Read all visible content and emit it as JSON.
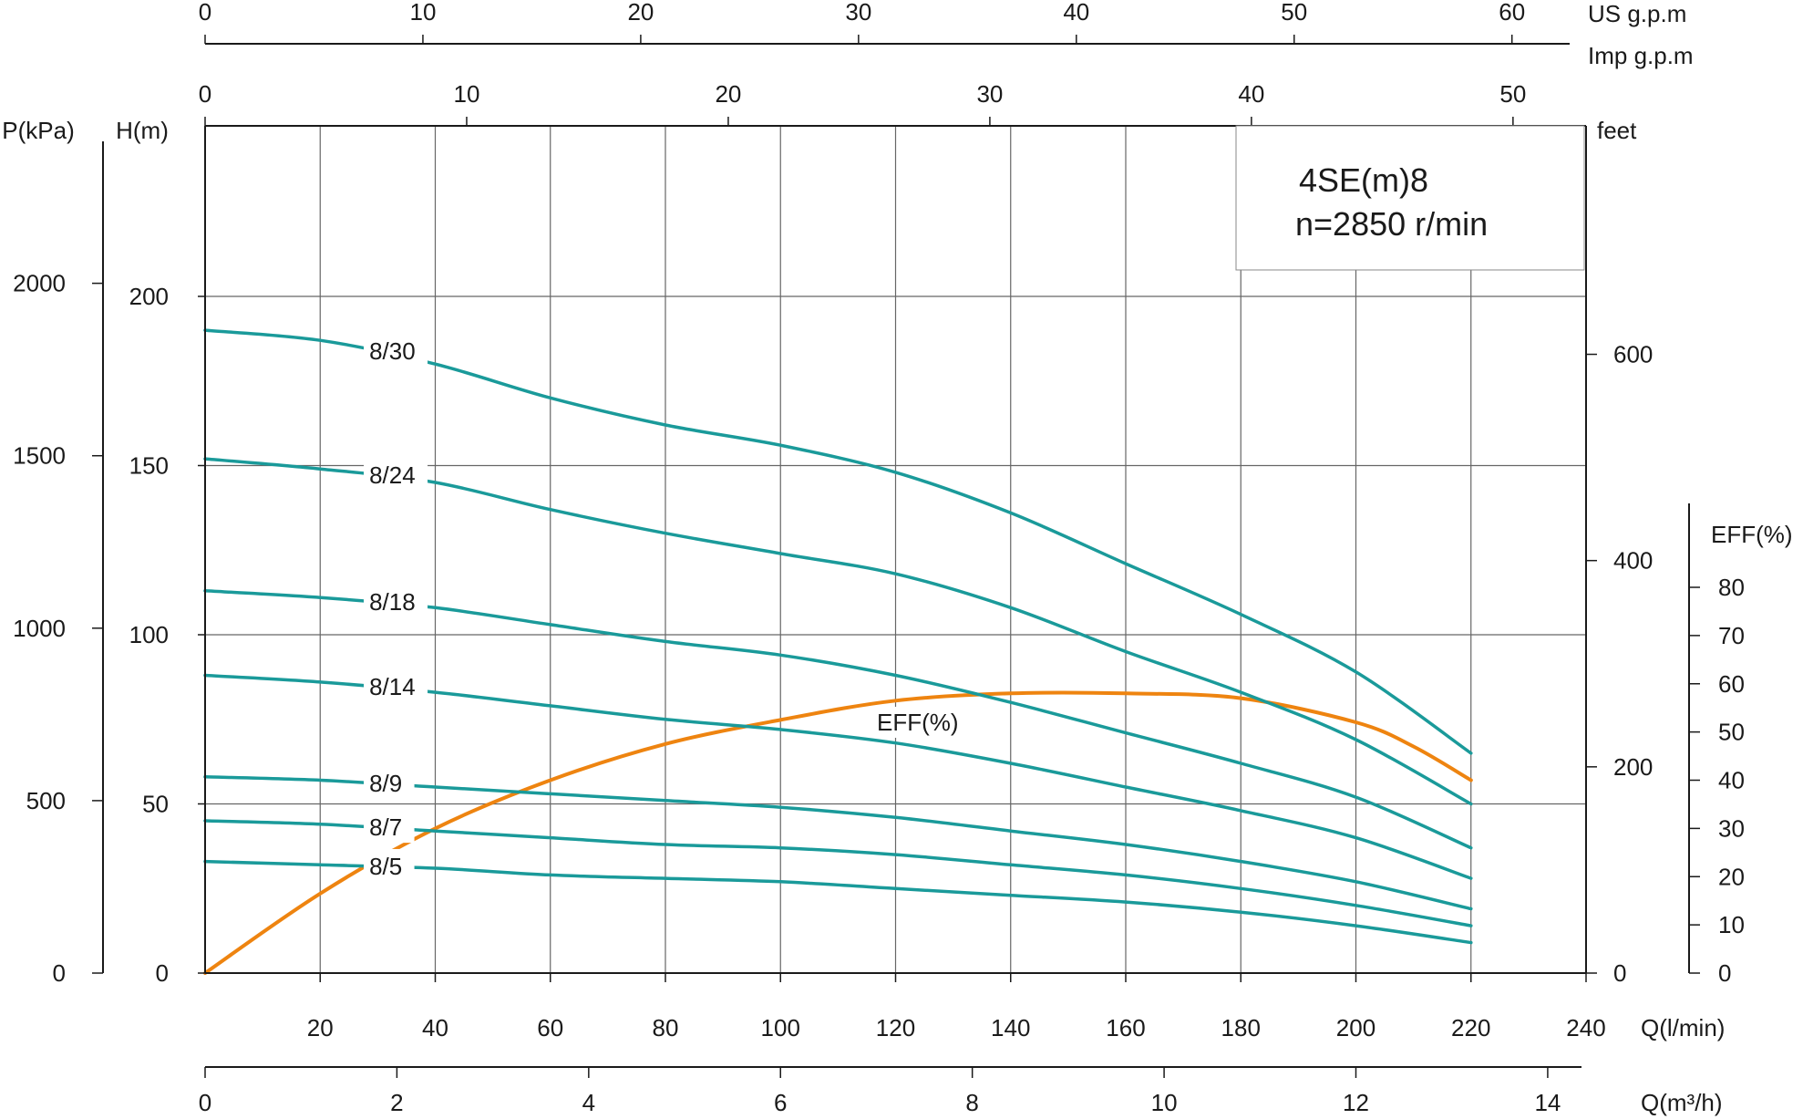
{
  "chart_data": {
    "type": "line",
    "title_line1": "4SE(m)8",
    "title_line2": "n=2850 r/min",
    "colors": {
      "head_curve": "#1a9a9a",
      "eff_curve": "#ee8410",
      "grid": "#666666",
      "axis": "#1a1a1a"
    },
    "grid": true,
    "x": [
      0,
      20,
      40,
      60,
      80,
      100,
      120,
      140,
      160,
      180,
      200,
      220
    ],
    "xlim": [
      0,
      240
    ],
    "ylim": [
      0,
      250
    ],
    "axes": {
      "q_lmin": {
        "label": "Q(l/min)",
        "ticks": [
          "20",
          "40",
          "60",
          "80",
          "100",
          "120",
          "140",
          "160",
          "180",
          "200",
          "220",
          "240"
        ]
      },
      "q_m3h": {
        "label": "Q(m³/h)",
        "ticks": [
          "0",
          "2",
          "4",
          "6",
          "8",
          "10",
          "12",
          "14"
        ],
        "per_unit_lmin": 16.6667
      },
      "us_gpm": {
        "label": "US  g.p.m",
        "ticks": [
          "0",
          "10",
          "20",
          "30",
          "40",
          "50",
          "60"
        ],
        "per_unit_lmin": 3.7854
      },
      "imp_gpm": {
        "label": "Imp  g.p.m",
        "ticks": [
          "0",
          "10",
          "20",
          "30",
          "40",
          "50"
        ],
        "per_unit_lmin": 4.5461
      },
      "head_m": {
        "label": "H(m)",
        "ticks": [
          "0",
          "50",
          "100",
          "150",
          "200"
        ]
      },
      "pressure_kpa": {
        "label": "P(kPa)",
        "ticks": [
          "0",
          "500",
          "1000",
          "1500",
          "2000"
        ],
        "per_unit_m": 9.81
      },
      "head_feet": {
        "label": "feet",
        "ticks": [
          "0",
          "200",
          "400",
          "600"
        ],
        "per_unit_m": 0.3048
      },
      "eff_pct": {
        "label": "EFF(%)",
        "ticks": [
          "0",
          "10",
          "20",
          "30",
          "40",
          "50",
          "60",
          "70",
          "80"
        ]
      }
    },
    "series": [
      {
        "name": "8/30",
        "values": [
          190,
          187,
          180,
          170,
          162,
          156,
          148,
          136,
          121,
          106,
          89,
          65
        ]
      },
      {
        "name": "8/24",
        "values": [
          152,
          149,
          145,
          137,
          130,
          124,
          118,
          108,
          95,
          83,
          69,
          50
        ]
      },
      {
        "name": "8/18",
        "values": [
          113,
          111,
          108,
          103,
          98,
          94,
          88,
          80,
          71,
          62,
          52,
          37
        ]
      },
      {
        "name": "8/14",
        "values": [
          88,
          86,
          83,
          79,
          75,
          72,
          68,
          62,
          55,
          48,
          40,
          28
        ]
      },
      {
        "name": "8/9",
        "values": [
          58,
          57,
          55,
          53,
          51,
          49,
          46,
          42,
          38,
          33,
          27,
          19
        ]
      },
      {
        "name": "8/7",
        "values": [
          45,
          44,
          42,
          40,
          38,
          37,
          35,
          32,
          29,
          25,
          20,
          14
        ]
      },
      {
        "name": "8/5",
        "values": [
          33,
          32,
          31,
          29,
          28,
          27,
          25,
          23,
          21,
          18,
          14,
          9
        ]
      }
    ],
    "efficiency": {
      "name": "EFF(%)",
      "x": [
        0,
        20,
        40,
        60,
        80,
        100,
        120,
        140,
        160,
        180,
        200,
        210,
        220
      ],
      "values": [
        0,
        16.5,
        30,
        40,
        47.5,
        52.5,
        56.5,
        58,
        58,
        57,
        52,
        47,
        40
      ]
    }
  }
}
